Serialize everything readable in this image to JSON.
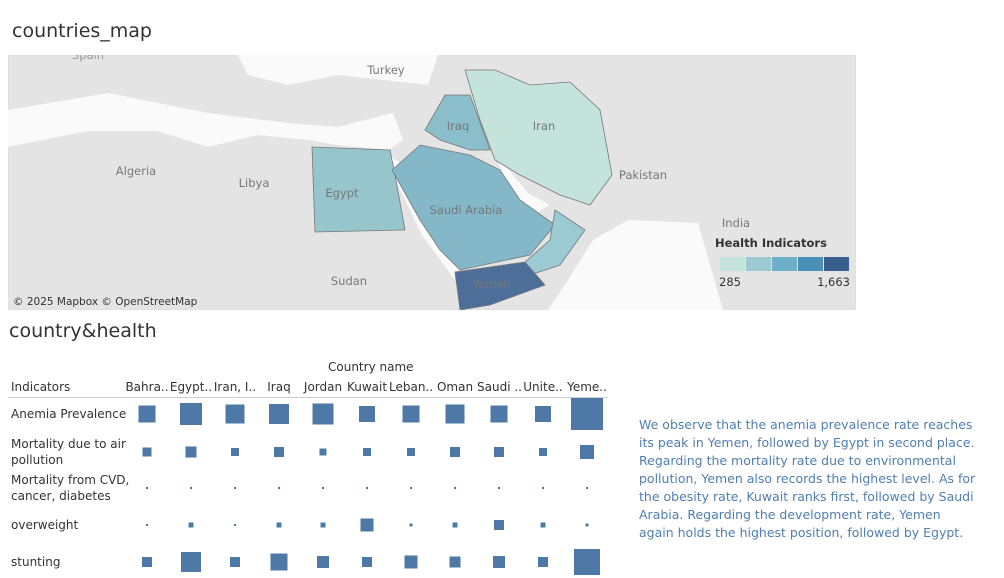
{
  "map": {
    "title": "countries_map",
    "labels": [
      "Spain",
      "Turkey",
      "Iran",
      "Iraq",
      "Algeria",
      "Libya",
      "Egypt",
      "Saudi Arabia",
      "Pakistan",
      "India",
      "Sudan",
      "Yemen"
    ],
    "attribution": "© 2025 Mapbox © OpenStreetMap",
    "legend": {
      "title": "Health Indicators",
      "min_label": "285",
      "max_label": "1,663",
      "colors": [
        "#c4e3db",
        "#9ccad3",
        "#6fb0c8",
        "#4a8fb5",
        "#3a5f8d"
      ]
    }
  },
  "chart": {
    "title": "country&health",
    "column_header": "Country name",
    "row_header": "Indicators",
    "columns": [
      "Bahra..",
      "Egypt..",
      "Iran, I..",
      "Iraq",
      "Jordan",
      "Kuwait",
      "Leban..",
      "Oman",
      "Saudi ..",
      "Unite..",
      "Yeme.."
    ],
    "rows": [
      {
        "name": "Anemia Prevalence",
        "values": [
          17,
          22,
          19,
          20,
          21,
          16,
          17,
          19,
          17,
          16,
          32
        ]
      },
      {
        "name": "Mortality due to air pollution",
        "values": [
          9,
          11,
          8,
          10,
          7,
          8,
          8,
          10,
          10,
          8,
          14
        ]
      },
      {
        "name": "Mortality from CVD, cancer, diabetes",
        "values": [
          2,
          2,
          2,
          2,
          2,
          2,
          2,
          2,
          2,
          2,
          2
        ]
      },
      {
        "name": "overweight",
        "values": [
          2,
          5,
          2,
          5,
          5,
          13,
          3,
          5,
          10,
          5,
          3
        ]
      },
      {
        "name": "stunting",
        "values": [
          10,
          20,
          10,
          17,
          12,
          10,
          13,
          11,
          12,
          10,
          26
        ]
      }
    ],
    "color": "#4e79a7"
  },
  "story": "We observe that the anemia prevalence rate reaches its peak in Yemen, followed by Egypt in second place. Regarding the mortality rate due to environmental pollution, Yemen also records the highest level. As for the obesity rate, Kuwait ranks first, followed by Saudi Arabia. Regarding the development rate, Yemen again holds the highest position, followed by Egypt."
}
